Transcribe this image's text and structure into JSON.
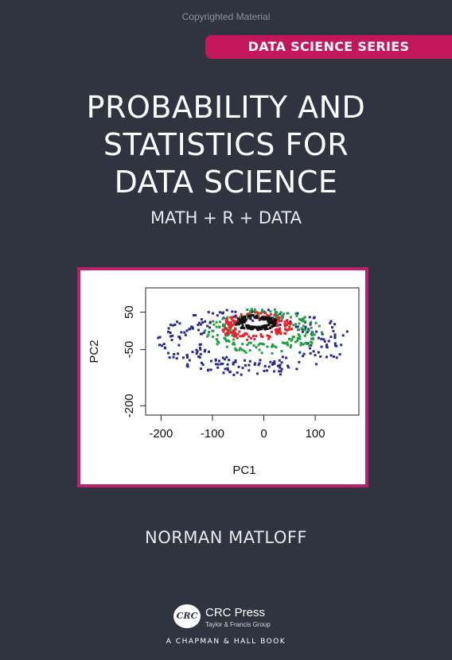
{
  "watermark": "Copyrighted Material",
  "series_label": "DATA SCIENCE SERIES",
  "title_lines": [
    "PROBABILITY AND",
    "STATISTICS FOR",
    "DATA SCIENCE"
  ],
  "subtitle": "MATH + R + DATA",
  "author": "NORMAN MATLOFF",
  "publisher": {
    "logo_text": "CRC",
    "name": "CRC Press",
    "group": "Taylor & Francis Group",
    "imprint": "A CHAPMAN & HALL BOOK"
  },
  "colors": {
    "background": "#2f3440",
    "accent": "#c2185b",
    "frame_border": "#b8226d"
  },
  "chart_data": {
    "type": "scatter",
    "xlabel": "PC1",
    "ylabel": "PC2",
    "xlim": [
      -230,
      185
    ],
    "ylim": [
      -225,
      115
    ],
    "x_ticks": [
      -200,
      -100,
      0,
      100
    ],
    "y_ticks": [
      50,
      -50,
      -200
    ],
    "grid": false,
    "series": [
      {
        "color": "#2a2a90",
        "cx": -20,
        "cy": -25,
        "rx": 190,
        "ry": 95,
        "n": 260
      },
      {
        "color": "#22a040",
        "cx": 0,
        "cy": 0,
        "rx": 115,
        "ry": 62,
        "n": 170
      },
      {
        "color": "#e8222a",
        "cx": -15,
        "cy": 12,
        "rx": 72,
        "ry": 38,
        "n": 150
      },
      {
        "color": "#111111",
        "cx": -15,
        "cy": 22,
        "rx": 42,
        "ry": 20,
        "n": 130
      }
    ]
  }
}
